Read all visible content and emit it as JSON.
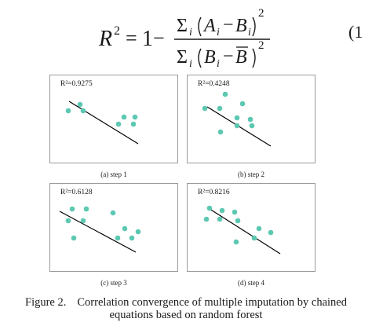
{
  "equation": {
    "lhs": "R",
    "lhs_sup": "2",
    "equals": "=",
    "one": "1",
    "minus": "−",
    "num_sum": "Σ",
    "num_sub": "i",
    "num_A": "A",
    "num_Ai_sub": "i",
    "num_op": "−",
    "num_B": "B",
    "num_Bi_sub": "i",
    "num_sup": "2",
    "den_sum": "Σ",
    "den_sub": "i",
    "den_B": "B",
    "den_Bi_sub": "i",
    "den_op": "−",
    "den_Bbar": "B",
    "den_sup": "2",
    "number": "(1"
  },
  "panels": [
    {
      "r2": "R²=0.9275",
      "caption": "(a) step 1",
      "points": [
        [
          30,
          30
        ],
        [
          15,
          38
        ],
        [
          34,
          38
        ],
        [
          86,
          46
        ],
        [
          100,
          46
        ],
        [
          79,
          55
        ],
        [
          98,
          55
        ]
      ]
    },
    {
      "r2": "R²=0.4248",
      "caption": "(b) step 2",
      "points": [
        [
          40,
          17
        ],
        [
          62,
          29
        ],
        [
          14,
          35
        ],
        [
          33,
          35
        ],
        [
          55,
          47
        ],
        [
          72,
          49
        ],
        [
          55,
          57
        ],
        [
          74,
          57
        ],
        [
          34,
          65
        ]
      ]
    },
    {
      "r2": "R²=0.6128",
      "caption": "(c) step 3",
      "points": [
        [
          20,
          25
        ],
        [
          38,
          25
        ],
        [
          72,
          30
        ],
        [
          15,
          40
        ],
        [
          34,
          40
        ],
        [
          87,
          50
        ],
        [
          104,
          54
        ],
        [
          22,
          62
        ],
        [
          78,
          62
        ],
        [
          96,
          62
        ]
      ]
    },
    {
      "r2": "R²=0.8216",
      "caption": "(d) step 4",
      "points": [
        [
          20,
          24
        ],
        [
          36,
          27
        ],
        [
          52,
          29
        ],
        [
          16,
          38
        ],
        [
          33,
          38
        ],
        [
          56,
          40
        ],
        [
          83,
          50
        ],
        [
          98,
          55
        ],
        [
          77,
          62
        ],
        [
          54,
          67
        ]
      ]
    }
  ],
  "figure_caption": {
    "label": "Figure 2.",
    "line1": "Correlation convergence of multiple imputation by chained",
    "line2": "equations based on random forest"
  },
  "colors": {
    "point": "#5cc8b2",
    "line": "#000000",
    "border": "#9a9a9a"
  }
}
